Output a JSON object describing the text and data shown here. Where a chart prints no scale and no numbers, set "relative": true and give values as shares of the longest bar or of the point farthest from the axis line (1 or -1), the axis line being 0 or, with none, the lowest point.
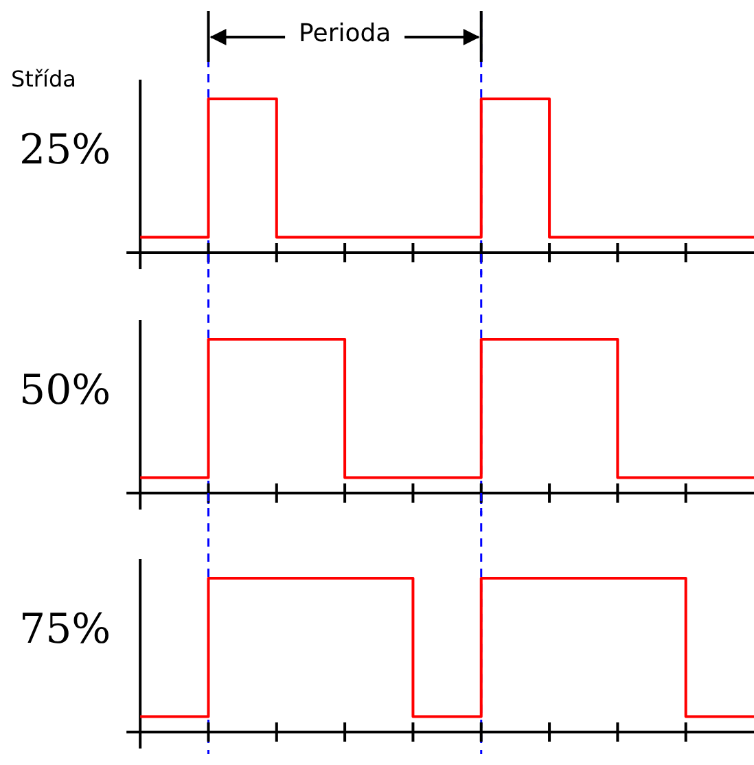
{
  "chart_data": [
    {
      "type": "step",
      "relative": true,
      "ylabel": "25%",
      "annotations": [
        "Střída",
        "Perioda"
      ],
      "categories": [
        null,
        null,
        null,
        null,
        null,
        null,
        null,
        null,
        null,
        null
      ],
      "series": [
        {
          "color": "#ff0000",
          "values": [
            0.1,
            1,
            0.1,
            0.1,
            0.1,
            1,
            0.1,
            0.1,
            0.1,
            0.1
          ]
        }
      ]
    },
    {
      "type": "step",
      "relative": true,
      "ylabel": "50%",
      "categories": [
        null,
        null,
        null,
        null,
        null,
        null,
        null,
        null,
        null,
        null
      ],
      "series": [
        {
          "color": "#ff0000",
          "values": [
            0.1,
            1,
            1,
            0.1,
            0.1,
            1,
            1,
            0.1,
            0.1,
            0.1
          ]
        }
      ]
    },
    {
      "type": "step",
      "relative": true,
      "ylabel": "75%",
      "categories": [
        null,
        null,
        null,
        null,
        null,
        null,
        null,
        null,
        null,
        null
      ],
      "series": [
        {
          "color": "#ff0000",
          "values": [
            0.1,
            1,
            1,
            1,
            0.1,
            1,
            1,
            1,
            0.1,
            0.1
          ]
        }
      ]
    }
  ]
}
